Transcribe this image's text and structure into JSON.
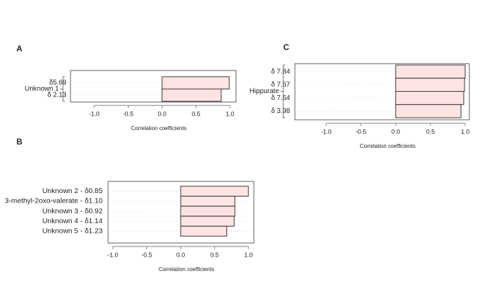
{
  "chart_data": [
    {
      "type": "bar",
      "panel_label": "A",
      "group_label": "Unknown  1",
      "xlabel": "Correlation coefficients",
      "categories": [
        "δ5.69",
        "δ 2.13"
      ],
      "values": [
        0.99,
        0.87
      ],
      "color": "#fde3e1",
      "xlim": [
        -1.35,
        1.09
      ],
      "xticks": [
        {
          "value": -1,
          "label": "-1.0"
        },
        -0.5,
        {
          "value": 0,
          "label": "0.0"
        },
        0.5,
        {
          "value": 1,
          "label": "1.0"
        }
      ],
      "grid": true
    },
    {
      "type": "bar",
      "panel_label": "B",
      "xlabel": "Correlation coefficients",
      "categories": [
        "Unknown 2  - δ0.85",
        "3-methyl-2oxo-valerate  - δ1.10",
        "Unknown 3  - δ0.92",
        "Unknown 4  - δ1.14",
        "Unknown 5  - δ1.23"
      ],
      "values": [
        1.0,
        0.8,
        0.8,
        0.79,
        0.68
      ],
      "color": "#fde3e1",
      "xlim": [
        -1.07,
        1.08
      ],
      "xticks": [
        {
          "value": -1,
          "label": "-1.0"
        },
        -0.5,
        {
          "value": 0,
          "label": "0.0"
        },
        0.5,
        {
          "value": 1,
          "label": "1.0"
        }
      ],
      "grid": true
    },
    {
      "type": "bar",
      "panel_label": "C",
      "group_label": "Hippurate",
      "xlabel": "Correlation coefficients",
      "categories": [
        "δ 7.84",
        "δ 7.57",
        "δ 7.64",
        "δ 3.98"
      ],
      "values": [
        1.0,
        0.99,
        0.98,
        0.94
      ],
      "color": "#fde3e1",
      "xlim": [
        -1.45,
        1.06
      ],
      "xticks": [
        {
          "value": -1,
          "label": "-1.0"
        },
        -0.5,
        {
          "value": 0,
          "label": "0.0"
        },
        0.5,
        {
          "value": 1,
          "label": "1.0"
        }
      ],
      "grid": true
    }
  ]
}
